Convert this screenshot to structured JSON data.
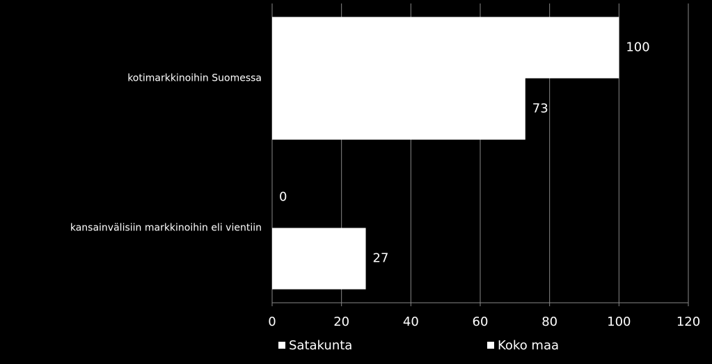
{
  "chart_data": {
    "type": "barh",
    "categories": [
      "kotimarkkinoihin Suomessa",
      "kansainvälisiin markkinoihin eli vientiin"
    ],
    "series": [
      {
        "name": "Satakunta",
        "color": "#ffffff",
        "values": [
          100,
          0
        ]
      },
      {
        "name": "Koko maa",
        "color": "#ffffff",
        "values": [
          73,
          27
        ]
      }
    ],
    "xlim": [
      0,
      120
    ],
    "xticks": [
      0,
      20,
      40,
      60,
      80,
      100,
      120
    ],
    "grid": true,
    "legend": "bottom"
  }
}
